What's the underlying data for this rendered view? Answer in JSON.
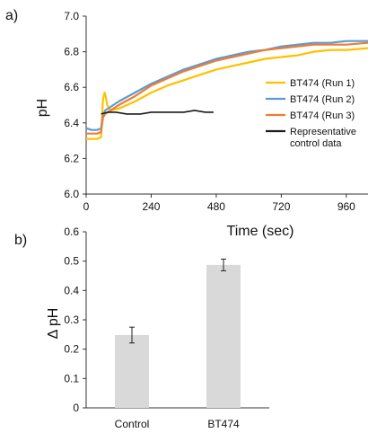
{
  "chart_data": [
    {
      "panel_label": "a)",
      "type": "line",
      "title": "",
      "xlabel": "Time (sec)",
      "ylabel": "pH",
      "xlim": [
        0,
        1040
      ],
      "ylim": [
        6.0,
        7.0
      ],
      "xticks": [
        0,
        240,
        480,
        720,
        960
      ],
      "xtick_labels": [
        "0",
        "240",
        "480",
        "720",
        "960"
      ],
      "yticks": [
        6.0,
        6.2,
        6.4,
        6.6,
        6.8,
        7.0
      ],
      "ytick_labels": [
        "6.0",
        "6.2",
        "6.4",
        "6.6",
        "6.8",
        "7.0"
      ],
      "grid": false,
      "legend": "right",
      "series": [
        {
          "name": "BT474 (Run 1)",
          "color": "#FFC000",
          "x": [
            0,
            20,
            40,
            55,
            62,
            68,
            72,
            78,
            90,
            120,
            180,
            240,
            300,
            360,
            420,
            480,
            540,
            600,
            660,
            720,
            780,
            840,
            900,
            960,
            1040
          ],
          "y": [
            6.31,
            6.31,
            6.31,
            6.32,
            6.53,
            6.57,
            6.55,
            6.5,
            6.47,
            6.48,
            6.52,
            6.57,
            6.61,
            6.64,
            6.67,
            6.7,
            6.72,
            6.74,
            6.76,
            6.77,
            6.78,
            6.8,
            6.81,
            6.81,
            6.82
          ]
        },
        {
          "name": "BT474 (Run 2)",
          "color": "#5B9BD5",
          "x": [
            0,
            20,
            40,
            55,
            62,
            70,
            90,
            120,
            180,
            240,
            300,
            360,
            420,
            480,
            540,
            600,
            660,
            720,
            780,
            840,
            900,
            960,
            1040
          ],
          "y": [
            6.37,
            6.36,
            6.36,
            6.37,
            6.44,
            6.47,
            6.49,
            6.52,
            6.57,
            6.62,
            6.66,
            6.7,
            6.73,
            6.76,
            6.78,
            6.8,
            6.81,
            6.83,
            6.84,
            6.85,
            6.85,
            6.86,
            6.86
          ]
        },
        {
          "name": "BT474 (Run 3)",
          "color": "#ED7D31",
          "x": [
            0,
            20,
            40,
            55,
            62,
            70,
            90,
            120,
            180,
            240,
            300,
            360,
            420,
            480,
            540,
            600,
            660,
            720,
            780,
            840,
            900,
            960,
            1040
          ],
          "y": [
            6.34,
            6.34,
            6.34,
            6.35,
            6.43,
            6.45,
            6.47,
            6.5,
            6.55,
            6.61,
            6.65,
            6.69,
            6.72,
            6.75,
            6.77,
            6.79,
            6.81,
            6.82,
            6.83,
            6.84,
            6.84,
            6.84,
            6.85
          ]
        },
        {
          "name": "Representative control data",
          "color": "#1a1a1a",
          "x": [
            55,
            80,
            110,
            150,
            200,
            240,
            300,
            360,
            400,
            440,
            470
          ],
          "y": [
            6.45,
            6.46,
            6.46,
            6.45,
            6.45,
            6.46,
            6.46,
            6.46,
            6.47,
            6.46,
            6.46
          ]
        }
      ]
    },
    {
      "panel_label": "b)",
      "type": "bar",
      "title": "",
      "xlabel": "",
      "ylabel": "Δ pH",
      "categories": [
        "Control",
        "BT474"
      ],
      "values": [
        0.248,
        0.487
      ],
      "errors": [
        0.027,
        0.02
      ],
      "bar_color": "#d9d9d9",
      "ylim": [
        0,
        0.6
      ],
      "yticks": [
        0,
        0.1,
        0.2,
        0.3,
        0.4,
        0.5,
        0.6
      ],
      "ytick_labels": [
        "0",
        "0.1",
        "0.2",
        "0.3",
        "0.4",
        "0.5",
        "0.6"
      ],
      "grid": false
    }
  ]
}
